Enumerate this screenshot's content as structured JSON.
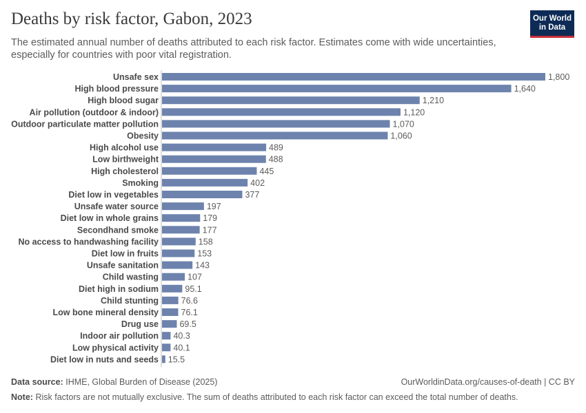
{
  "header": {
    "title": "Deaths by risk factor, Gabon, 2023",
    "subtitle": "The estimated annual number of deaths attributed to each risk factor. Estimates come with wide uncertainties, especially for countries with poor vital registration."
  },
  "logo": {
    "line1": "Our World",
    "line2": "in Data",
    "bg_color": "#0d2b55",
    "accent_color": "#c8303a"
  },
  "footer": {
    "source_label": "Data source:",
    "source_text": "IHME, Global Burden of Disease (2025)",
    "url_text": "OurWorldinData.org/causes-of-death | CC BY",
    "note_label": "Note:",
    "note_text": "Risk factors are not mutually exclusive. The sum of deaths attributed to each risk factor can exceed the total number of deaths."
  },
  "chart_data": {
    "type": "bar",
    "orientation": "horizontal",
    "title": "Deaths by risk factor, Gabon, 2023",
    "bar_color": "#6d83ad",
    "categories": [
      "Unsafe sex",
      "High blood pressure",
      "High blood sugar",
      "Air pollution (outdoor & indoor)",
      "Outdoor particulate matter pollution",
      "Obesity",
      "High alcohol use",
      "Low birthweight",
      "High cholesterol",
      "Smoking",
      "Diet low in vegetables",
      "Unsafe water source",
      "Diet low in whole grains",
      "Secondhand smoke",
      "No access to handwashing facility",
      "Diet low in fruits",
      "Unsafe sanitation",
      "Child wasting",
      "Diet high in sodium",
      "Child stunting",
      "Low bone mineral density",
      "Drug use",
      "Indoor air pollution",
      "Low physical activity",
      "Diet low in nuts and seeds"
    ],
    "values": [
      1800,
      1640,
      1210,
      1120,
      1070,
      1060,
      489,
      488,
      445,
      402,
      377,
      197,
      179,
      177,
      158,
      153,
      143,
      107,
      95.1,
      76.6,
      76.1,
      69.5,
      40.3,
      40.1,
      15.5
    ],
    "value_labels": [
      "1,800",
      "1,640",
      "1,210",
      "1,120",
      "1,070",
      "1,060",
      "489",
      "488",
      "445",
      "402",
      "377",
      "197",
      "179",
      "177",
      "158",
      "153",
      "143",
      "107",
      "95.1",
      "76.6",
      "76.1",
      "69.5",
      "40.3",
      "40.1",
      "15.5"
    ],
    "xlim": [
      0,
      1800
    ]
  }
}
